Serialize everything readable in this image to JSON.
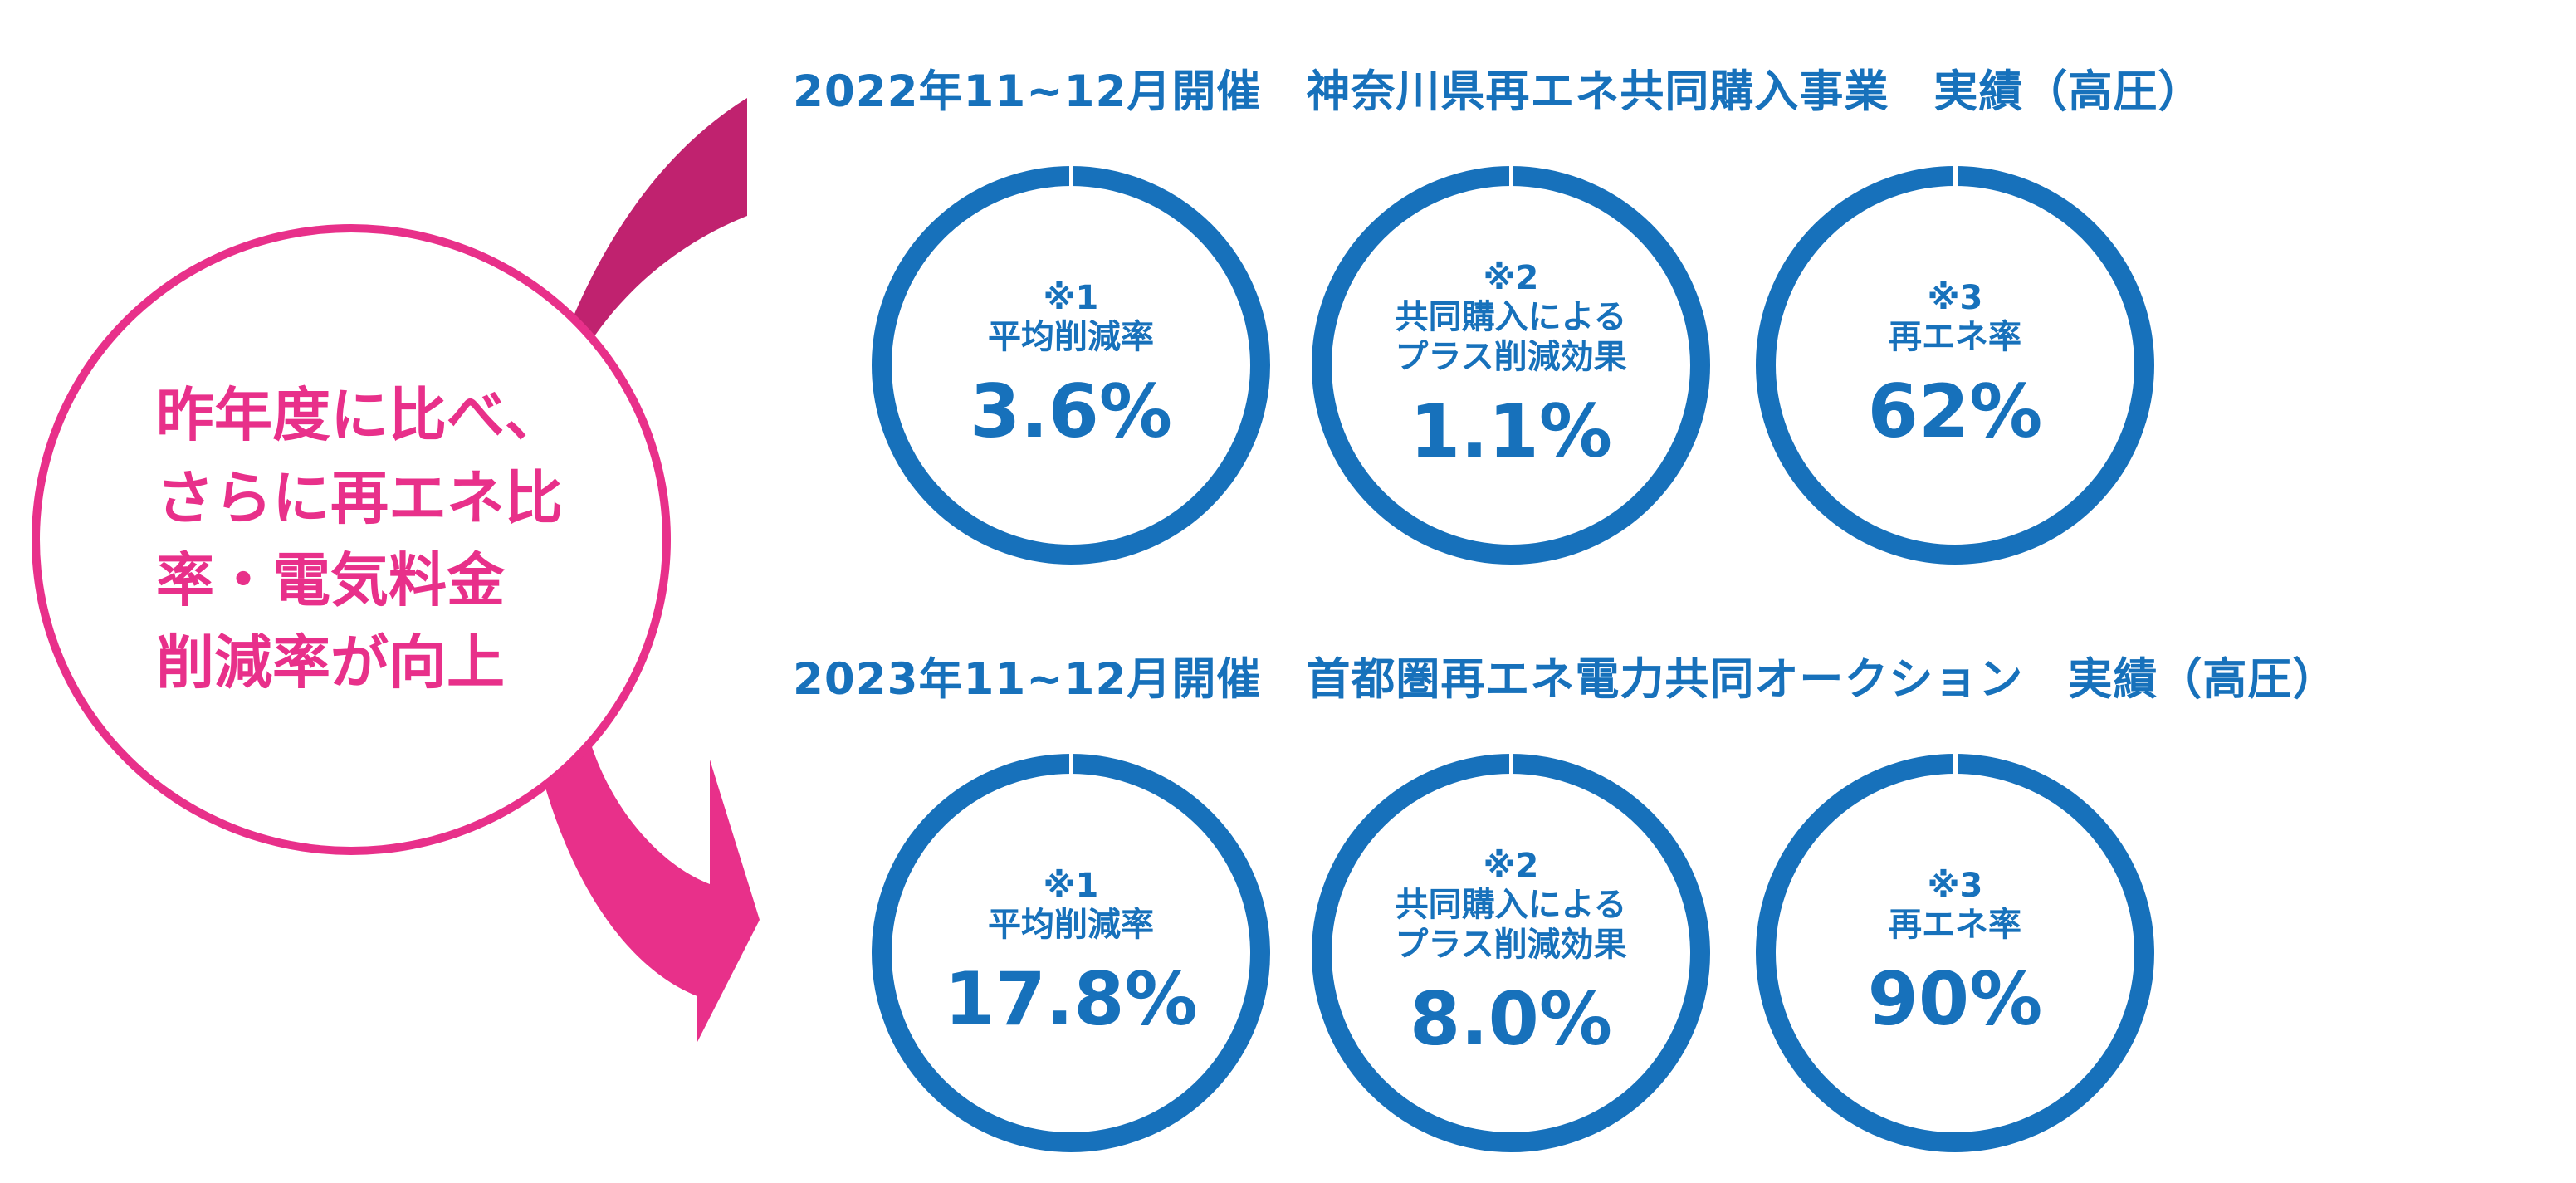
{
  "headline": [
    "昨年度に比べ、",
    "さらに再エネ比",
    "率・電気料金",
    "削減率が向上"
  ],
  "colors": {
    "accent_pink": "#E8308A",
    "arrow_dark": "#C0226F",
    "accent_blue": "#1771BB"
  },
  "sections": [
    {
      "title": "2022年11~12月開催　神奈川県再エネ共同購入事業　実績（高圧）",
      "metrics": [
        {
          "note": "※1",
          "label": [
            "平均削減率"
          ],
          "value": "3.6%"
        },
        {
          "note": "※2",
          "label": [
            "共同購入による",
            "プラス削減効果"
          ],
          "value": "1.1%"
        },
        {
          "note": "※3",
          "label": [
            "再エネ率"
          ],
          "value": "62%"
        }
      ]
    },
    {
      "title": "2023年11~12月開催　首都圏再エネ電力共同オークション　実績（高圧）",
      "metrics": [
        {
          "note": "※1",
          "label": [
            "平均削減率"
          ],
          "value": "17.8%"
        },
        {
          "note": "※2",
          "label": [
            "共同購入による",
            "プラス削減効果"
          ],
          "value": "8.0%"
        },
        {
          "note": "※3",
          "label": [
            "再エネ率"
          ],
          "value": "90%"
        }
      ]
    }
  ]
}
